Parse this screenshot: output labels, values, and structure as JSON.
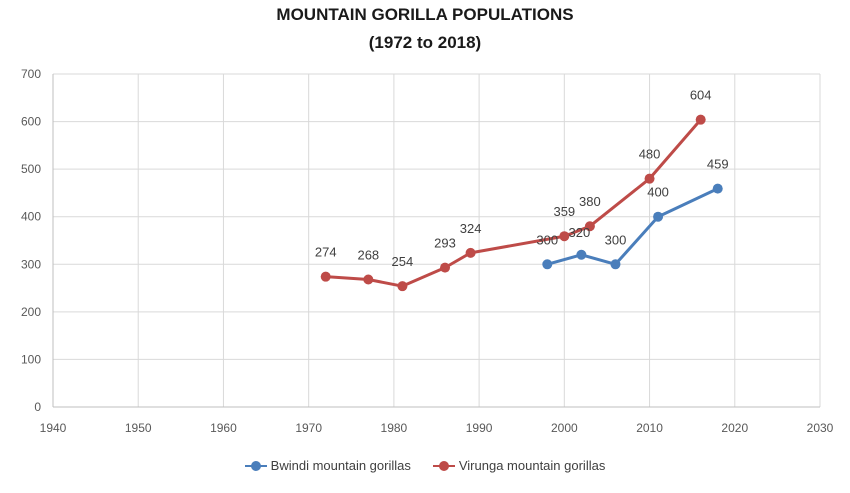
{
  "chart_data": {
    "type": "line",
    "title": "MOUNTAIN GORILLA POPULATIONS",
    "subtitle": "(1972 to 2018)",
    "xlabel": "",
    "ylabel": "",
    "xlim": [
      1940,
      2030
    ],
    "ylim": [
      0,
      700
    ],
    "x_ticks": [
      1940,
      1950,
      1960,
      1970,
      1980,
      1990,
      2000,
      2010,
      2020,
      2030
    ],
    "y_ticks": [
      0,
      100,
      200,
      300,
      400,
      500,
      600,
      700
    ],
    "grid": true,
    "legend_position": "bottom",
    "series": [
      {
        "name": "Bwindi mountain gorillas",
        "color": "#4a7ebb",
        "x": [
          1998,
          2002,
          2006,
          2011,
          2018
        ],
        "values": [
          300,
          320,
          300,
          400,
          459
        ]
      },
      {
        "name": "Virunga mountain gorillas",
        "color": "#be4b48",
        "x": [
          1972,
          1977,
          1981,
          1986,
          1989,
          2000,
          2003,
          2010,
          2016
        ],
        "values": [
          274,
          268,
          254,
          293,
          324,
          359,
          380,
          480,
          604
        ]
      }
    ]
  },
  "header": {
    "title_line1": "MOUNTAIN GORILLA POPULATIONS",
    "title_line2": "(1972 to 2018)"
  },
  "legend": {
    "items": [
      {
        "label": "Bwindi mountain gorillas",
        "color": "#4a7ebb"
      },
      {
        "label": "Virunga mountain gorillas",
        "color": "#be4b48"
      }
    ]
  }
}
